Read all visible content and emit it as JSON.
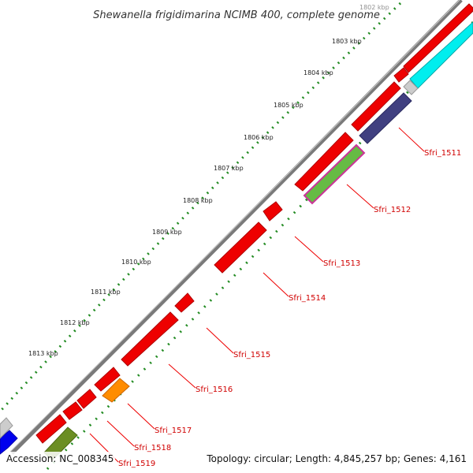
{
  "title": "Shewanella frigidimarina NCIMB 400, complete genome",
  "scale_ticks": [
    "1802 kbp",
    "1803 kbp",
    "1804 kbp",
    "1805 kbp",
    "1806 kbp",
    "1807 kbp",
    "1808 kbp",
    "1809 kbp",
    "1810 kbp",
    "1811 kbp",
    "1812 kbp",
    "1813 kbp"
  ],
  "gene_labels": [
    "Sfri_1511",
    "Sfri_1512",
    "Sfri_1513",
    "Sfri_1514",
    "Sfri_1515",
    "Sfri_1516",
    "Sfri_1517",
    "Sfri_1518",
    "Sfri_1519"
  ],
  "footer": {
    "accession": "Accession: NC_008345",
    "summary": "Topology: circular; Length: 4,845,257 bp; Genes: 4,161"
  },
  "colors": {
    "backbone": "#7a7a7a",
    "forward_genes": "#ee0000",
    "reverse_cyan": "#00eeee",
    "reverse_navy": "#404080",
    "reverse_orange": "#ff8c00",
    "reverse_olive": "#6b8e23",
    "reverse_blue": "#0000ee",
    "gc_dots": "#228b22",
    "label_lines": "#ee0000"
  }
}
